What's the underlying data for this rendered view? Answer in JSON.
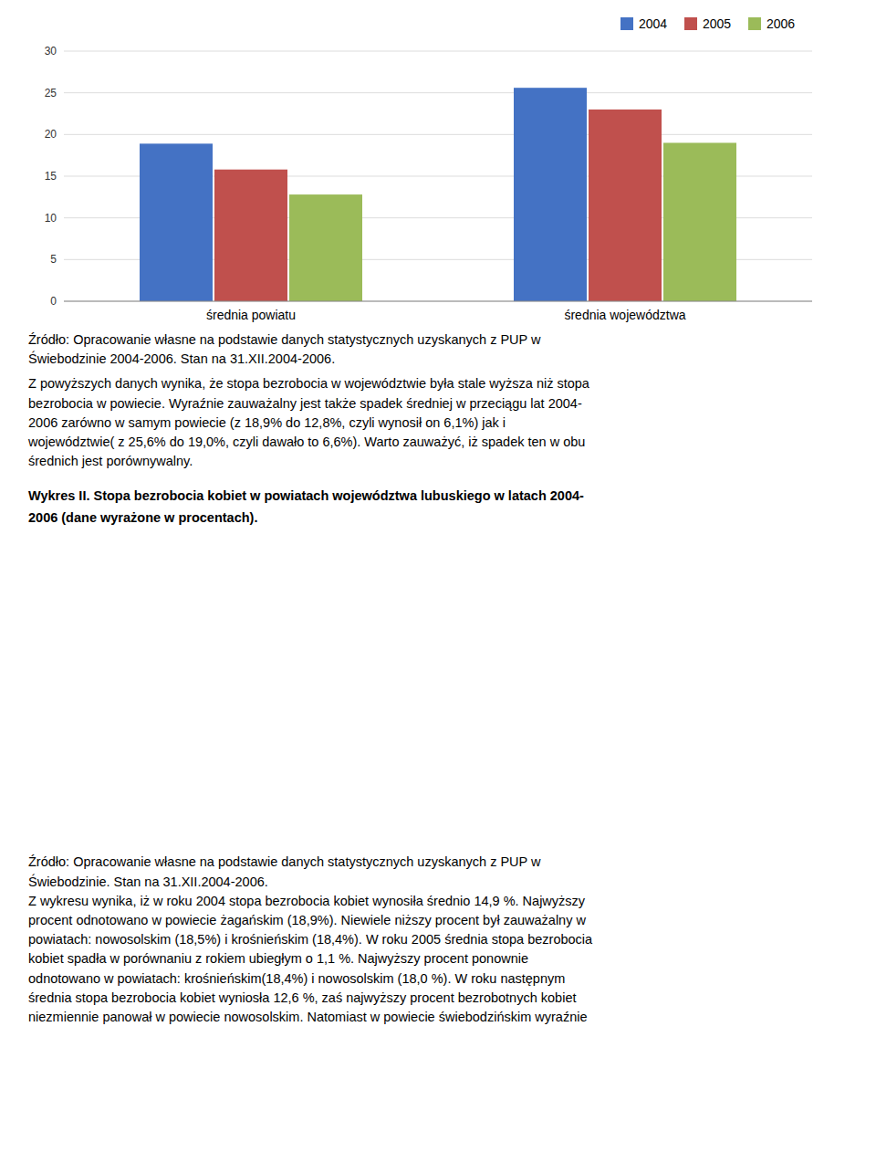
{
  "chart_data": {
    "type": "bar",
    "categories": [
      "średnia powiatu",
      "średnia województwa"
    ],
    "series": [
      {
        "name": "2004",
        "color": "#4472C4",
        "values": [
          18.9,
          25.6
        ]
      },
      {
        "name": "2005",
        "color": "#C0504D",
        "values": [
          15.8,
          23.0
        ]
      },
      {
        "name": "2006",
        "color": "#9BBB59",
        "values": [
          12.8,
          19.0
        ]
      }
    ],
    "ylim": [
      0,
      30
    ],
    "yticks": [
      0,
      5,
      10,
      15,
      20,
      25,
      30
    ],
    "grid": true,
    "legend": "upper right",
    "annotations": [
      "Źródło: Opracowanie własne na podstawie danych statystycznych uzyskanych z PUP w",
      "Świebodzinie 2004-2006. Stan na 31.XII.2004-2006.",
      "Z powyższych danych wynika, że stopa bezrobocia w województwie była stale wyższa niż stopa",
      "bezrobocia w powiecie. Wyraźnie zauważalny jest także spadek średniej w przeciągu lat 2004-",
      "2006 zarówno w samym powiecie (z 18,9% do 12,8%, czyli wynosił on 6,1%) jak i",
      "województwie( z 25,6% do 19,0%, czyli dawało to 6,6%). Warto zauważyć, iż spadek ten w obu",
      "średnich jest porównywalny.",
      "Wykres II. Stopa bezrobocia kobiet w powiatach województwa lubuskiego w latach 2004-",
      "2006 (dane wyrażone w procentach).",
      "Źródło: Opracowanie własne na podstawie danych statystycznych uzyskanych z PUP w",
      "Świebodzinie. Stan na 31.XII.2004-2006.",
      "Z wykresu wynika, iż w roku 2004 stopa bezrobocia kobiet wynosiła średnio 14,9 %. Najwyższy",
      "procent odnotowano w powiecie żagańskim (18,9%). Niewiele niższy procent był zauważalny w",
      "powiatach: nowosolskim (18,5%) i krośnieńskim (18,4%). W roku 2005 średnia stopa bezrobocia",
      "kobiet spadła w porównaniu z rokiem ubiegłym o 1,1 %. Najwyższy procent ponownie",
      "odnotowano w powiatach: krośnieńskim(18,4%) i nowosolskim (18,0 %). W roku następnym",
      "średnia stopa bezrobocia kobiet wyniosła 12,6 %, zaś najwyższy procent bezrobotnych kobiet",
      "niezmiennie panował w powiecie nowosolskim. Natomiast w powiecie świebodzińskim wyraźnie"
    ]
  }
}
